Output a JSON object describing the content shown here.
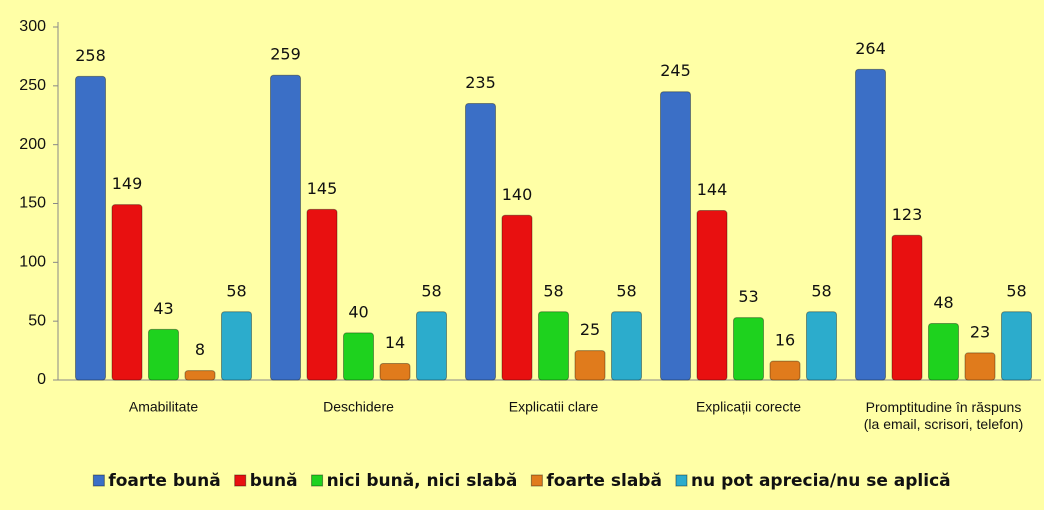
{
  "chart_data": {
    "type": "bar",
    "categories": [
      "Amabilitate",
      "Deschidere",
      "Explicatii clare",
      "Explicații corecte",
      "Promptitudine în răspuns\n(la email, scrisori, telefon)"
    ],
    "series": [
      {
        "name": "foarte bună",
        "color": "#3b6fc6",
        "values": [
          258,
          259,
          235,
          245,
          264
        ]
      },
      {
        "name": "bună",
        "color": "#e81010",
        "values": [
          149,
          145,
          140,
          144,
          123
        ]
      },
      {
        "name": "nici bună, nici slabă",
        "color": "#1ed21e",
        "values": [
          43,
          40,
          58,
          53,
          48
        ]
      },
      {
        "name": "foarte slabă",
        "color": "#e07b1c",
        "values": [
          8,
          14,
          25,
          16,
          23
        ]
      },
      {
        "name": "nu pot aprecia/nu se aplică",
        "color": "#2caccc",
        "values": [
          58,
          58,
          58,
          58,
          58
        ]
      }
    ],
    "ylim": [
      0,
      300
    ],
    "yticks": [
      0,
      50,
      100,
      150,
      200,
      250,
      300
    ],
    "legend": "bottom"
  }
}
